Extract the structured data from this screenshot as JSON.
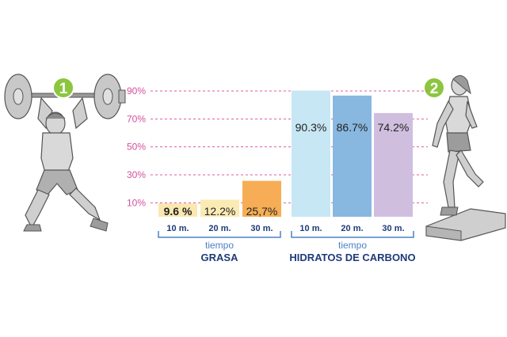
{
  "chart_data": {
    "type": "bar",
    "y_ticks": [
      {
        "label": "10%",
        "value": 10
      },
      {
        "label": "30%",
        "value": 30
      },
      {
        "label": "50%",
        "value": 50
      },
      {
        "label": "70%",
        "value": 70
      },
      {
        "label": "90%",
        "value": 90
      }
    ],
    "ylim": [
      0,
      90
    ],
    "groups": [
      {
        "axis_caption": "tiempo",
        "name": "GRASA",
        "categories": [
          "10 m.",
          "20 m.",
          "30 m."
        ],
        "values": [
          9.6,
          12.2,
          25.7
        ],
        "value_labels": [
          "9.6 %",
          "12.2%",
          "25,7%"
        ],
        "colors": [
          "#fbe8b0",
          "#faebb4",
          "#f7ad55"
        ]
      },
      {
        "axis_caption": "tiempo",
        "name": "HIDRATOS DE CARBONO",
        "categories": [
          "10 m.",
          "20 m.",
          "30 m."
        ],
        "values": [
          90.3,
          86.7,
          74.2
        ],
        "value_labels": [
          "90.3%",
          "86.7%",
          "74.2%"
        ],
        "colors": [
          "#c7e7f4",
          "#88b8e0",
          "#d0bedf"
        ]
      }
    ],
    "grid": "dashed horizontal",
    "grid_color": "#e05aa0",
    "tick_label_color": "#d3519a",
    "axis_color": "#4b82c7",
    "group_label_color": "#1f3a7a"
  },
  "figures": [
    {
      "badge": "1",
      "icon": "weightlifter-icon"
    },
    {
      "badge": "2",
      "icon": "step-aerobics-woman-icon"
    }
  ],
  "badge_color": "#8cc63f"
}
